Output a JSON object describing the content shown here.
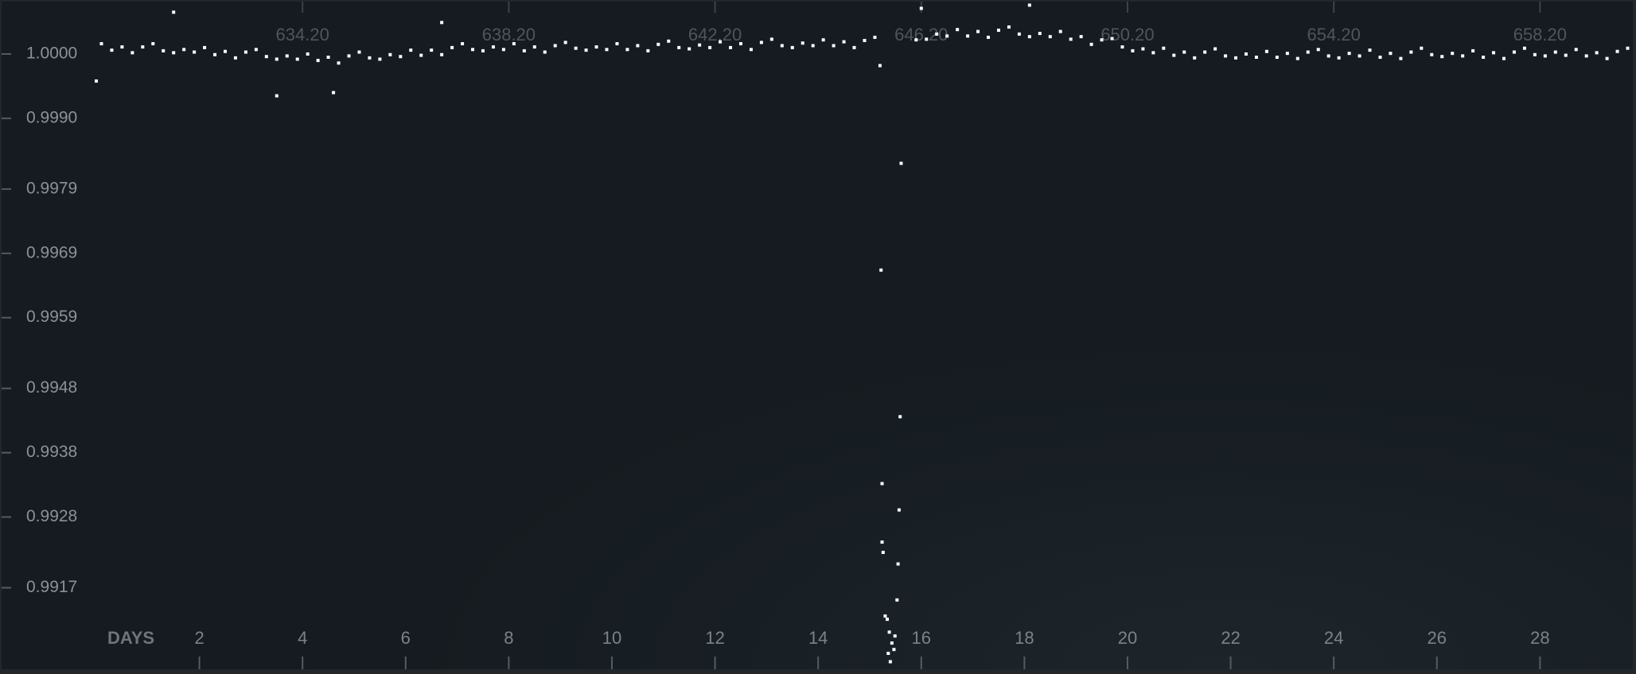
{
  "chart_data": {
    "type": "scatter",
    "color": "#ffffff",
    "x_label": "DAYS",
    "x": [
      0.1,
      0.3,
      0.5,
      0.7,
      0.9,
      1.1,
      1.3,
      1.5,
      1.7,
      1.9,
      2.1,
      2.3,
      2.5,
      2.7,
      2.9,
      3.1,
      3.3,
      3.5,
      3.7,
      3.9,
      4.1,
      4.3,
      4.5,
      4.7,
      4.9,
      5.1,
      5.3,
      5.5,
      5.7,
      5.9,
      6.1,
      6.3,
      6.5,
      6.7,
      6.9,
      7.1,
      7.3,
      7.5,
      7.7,
      7.9,
      8.1,
      8.3,
      8.5,
      8.7,
      8.9,
      9.1,
      9.3,
      9.5,
      9.7,
      9.9,
      10.1,
      10.3,
      10.5,
      10.7,
      10.9,
      11.1,
      11.3,
      11.5,
      11.7,
      11.9,
      12.1,
      12.3,
      12.5,
      12.7,
      12.9,
      13.1,
      13.3,
      13.5,
      13.7,
      13.9,
      14.1,
      14.3,
      14.5,
      14.7,
      14.9,
      15.1,
      15.9,
      16.1,
      16.3,
      16.5,
      16.7,
      16.9,
      17.1,
      17.3,
      17.5,
      17.7,
      17.9,
      18.1,
      18.3,
      18.5,
      18.7,
      18.9,
      19.1,
      19.3,
      19.5,
      19.7,
      19.9,
      20.1,
      20.3,
      20.5,
      20.7,
      20.9,
      21.1,
      21.3,
      21.5,
      21.7,
      21.9,
      22.1,
      22.3,
      22.5,
      22.7,
      22.9,
      23.1,
      23.3,
      23.5,
      23.7,
      23.9,
      24.1,
      24.3,
      24.5,
      24.7,
      24.9,
      25.1,
      25.3,
      25.5,
      25.7,
      25.9,
      26.1,
      26.3,
      26.5,
      26.7,
      26.9,
      27.1,
      27.3,
      27.5,
      27.7,
      27.9,
      28.1,
      28.3,
      28.5,
      28.7,
      28.9,
      29.1,
      29.3,
      29.5,
      29.7,
      0.0,
      1.5,
      3.5,
      4.6,
      6.7,
      16.0,
      18.1,
      15.2,
      15.22,
      15.61,
      15.59,
      15.24,
      15.57,
      15.24,
      15.26,
      15.55,
      15.53,
      15.3,
      15.34,
      15.38,
      15.49,
      15.43,
      15.47,
      15.36,
      15.4
    ],
    "values": [
      1.00016,
      1.00006,
      1.00011,
      1.00002,
      1.00011,
      1.00016,
      1.00005,
      1.00002,
      1.00007,
      1.00003,
      1.0001,
      0.99999,
      1.00004,
      0.99994,
      1.00003,
      1.00007,
      0.99996,
      0.99992,
      0.99997,
      0.99992,
      1.0,
      0.9999,
      0.99995,
      0.99986,
      0.99997,
      1.00003,
      0.99994,
      0.99992,
      0.99999,
      0.99996,
      1.00006,
      0.99998,
      1.00006,
      0.99999,
      1.0001,
      1.00016,
      1.00007,
      1.00005,
      1.00011,
      1.00007,
      1.00016,
      1.00005,
      1.00011,
      1.00003,
      1.00013,
      1.00018,
      1.00009,
      1.00006,
      1.00011,
      1.00007,
      1.00016,
      1.00007,
      1.00013,
      1.00005,
      1.00015,
      1.0002,
      1.0001,
      1.00008,
      1.00014,
      1.0001,
      1.00019,
      1.0001,
      1.00016,
      1.00007,
      1.00018,
      1.00023,
      1.00013,
      1.0001,
      1.00017,
      1.00013,
      1.00022,
      1.00013,
      1.00019,
      1.0001,
      1.00021,
      1.00026,
      1.00022,
      1.00023,
      1.00031,
      1.00028,
      1.00038,
      1.00028,
      1.00035,
      1.00026,
      1.00037,
      1.00042,
      1.00031,
      1.00027,
      1.00032,
      1.00027,
      1.00035,
      1.00023,
      1.00027,
      1.00015,
      1.00022,
      1.00024,
      1.00011,
      1.00005,
      1.00008,
      1.00002,
      1.00009,
      0.99998,
      1.00003,
      0.99994,
      1.00003,
      1.00008,
      0.99997,
      0.99994,
      1.0,
      0.99995,
      1.00004,
      0.99995,
      1.00001,
      0.99993,
      1.00003,
      1.00007,
      0.99997,
      0.99994,
      1.00001,
      0.99997,
      1.00006,
      0.99995,
      1.00001,
      0.99993,
      1.00003,
      1.00009,
      0.99999,
      0.99996,
      1.00001,
      0.99997,
      1.00005,
      0.99995,
      1.00002,
      0.99993,
      1.00003,
      1.00009,
      0.99999,
      0.99997,
      1.00003,
      0.99998,
      1.00007,
      0.99997,
      1.00002,
      0.99993,
      1.00004,
      1.00009,
      0.99958,
      1.00065,
      0.99935,
      0.9994,
      1.00049,
      1.00071,
      1.00076,
      0.99982,
      0.99664,
      0.9983,
      0.99436,
      0.99332,
      0.99291,
      0.99241,
      0.99225,
      0.99207,
      0.99151,
      0.99126,
      0.99121,
      0.99101,
      0.99095,
      0.99084,
      0.99074,
      0.99068,
      0.99055
    ],
    "xlim": [
      0,
      29.8
    ],
    "xticks": [
      2,
      4,
      6,
      8,
      10,
      12,
      14,
      16,
      18,
      20,
      22,
      24,
      26,
      28
    ],
    "x2lim": [
      630.2,
      660.0
    ],
    "x2ticks": [
      {
        "value": 634.2,
        "label": "634.20"
      },
      {
        "value": 638.2,
        "label": "638.20"
      },
      {
        "value": 642.2,
        "label": "642.20"
      },
      {
        "value": 646.2,
        "label": "646.20"
      },
      {
        "value": 650.2,
        "label": "650.20"
      },
      {
        "value": 654.2,
        "label": "654.20"
      },
      {
        "value": 658.2,
        "label": "658.20"
      }
    ],
    "ylim": [
      0.99047,
      1.00084
    ],
    "yticks": [
      {
        "value": 1.0,
        "label": "1.0000"
      },
      {
        "value": 0.999,
        "label": "0.9990"
      },
      {
        "value": 0.9979,
        "label": "0.9979"
      },
      {
        "value": 0.9969,
        "label": "0.9969"
      },
      {
        "value": 0.9959,
        "label": "0.9959"
      },
      {
        "value": 0.9948,
        "label": "0.9948"
      },
      {
        "value": 0.9938,
        "label": "0.9938"
      },
      {
        "value": 0.9928,
        "label": "0.9928"
      },
      {
        "value": 0.9917,
        "label": "0.9917"
      }
    ]
  }
}
